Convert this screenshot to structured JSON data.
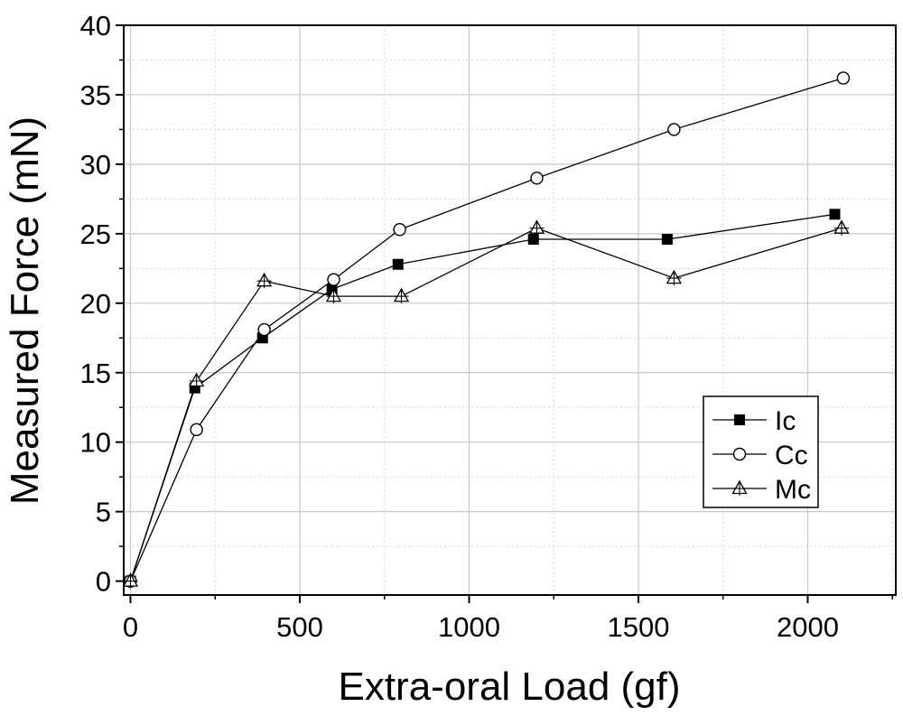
{
  "chart_data": {
    "type": "line",
    "xlabel": "Extra-oral Load (gf)",
    "ylabel": "Measured Force (mN)",
    "xlim": [
      -20,
      2260
    ],
    "ylim": [
      -1,
      40
    ],
    "xticks": [
      0,
      500,
      1000,
      1500,
      2000
    ],
    "yticks": [
      0,
      5,
      10,
      15,
      20,
      25,
      30,
      35,
      40
    ],
    "xtick_labels": [
      "0",
      "500",
      "1000",
      "1500",
      "2000"
    ],
    "ytick_labels": [
      "0",
      "5",
      "10",
      "15",
      "20",
      "25",
      "30",
      "35",
      "40"
    ],
    "grid": true,
    "legend_position": "right",
    "series": [
      {
        "name": "Ic",
        "marker": "filled-square",
        "x": [
          0,
          190,
          390,
          595,
          790,
          1190,
          1585,
          2080
        ],
        "y": [
          0,
          13.9,
          17.5,
          21.0,
          22.8,
          24.6,
          24.6,
          26.4
        ]
      },
      {
        "name": "Cc",
        "marker": "open-circle",
        "x": [
          0,
          195,
          395,
          600,
          795,
          1200,
          1605,
          2105
        ],
        "y": [
          0,
          10.9,
          18.1,
          21.7,
          25.3,
          29.0,
          32.5,
          36.2
        ]
      },
      {
        "name": "Mc",
        "marker": "open-triangle",
        "x": [
          0,
          195,
          395,
          600,
          800,
          1200,
          1605,
          2100
        ],
        "y": [
          0,
          14.4,
          21.6,
          20.5,
          20.5,
          25.4,
          21.8,
          25.4
        ]
      }
    ]
  }
}
